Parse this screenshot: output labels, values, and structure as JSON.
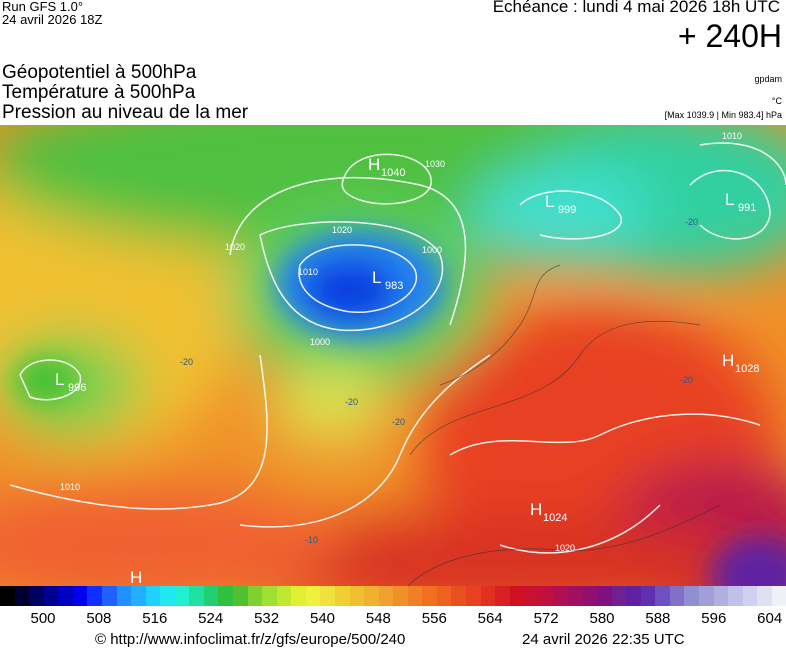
{
  "header": {
    "run": "Run GFS 1.0°",
    "run_date": "24 avril 2026 18Z",
    "valid": "Echéance : lundi 4 mai 2026 18h UTC",
    "lead": "+ 240H"
  },
  "titles": [
    "Géopotentiel à 500hPa",
    "Température à 500hPa",
    "Pression au niveau de la mer"
  ],
  "units": {
    "geopotential": "gpdam",
    "temperature": "°C",
    "pressure_range": "[Max 1039.9 | Min 983.4] hPa"
  },
  "pressure_centers": [
    {
      "symbol": "H",
      "value": "1040"
    },
    {
      "symbol": "L",
      "value": "999"
    },
    {
      "symbol": "L",
      "value": "991"
    },
    {
      "symbol": "L",
      "value": "983"
    },
    {
      "symbol": "L",
      "value": "996"
    },
    {
      "symbol": "H",
      "value": "1028"
    },
    {
      "symbol": "H",
      "value": "1024"
    },
    {
      "symbol": "H"
    }
  ],
  "isobar_labels": [
    "1010",
    "1020",
    "1030",
    "1000",
    "1000",
    "1010",
    "1020",
    "1020",
    "1010"
  ],
  "temperature_labels": [
    "-20",
    "-20",
    "-20",
    "-20",
    "-20",
    "-10"
  ],
  "scale_labels": [
    "500",
    "508",
    "516",
    "524",
    "532",
    "540",
    "548",
    "556",
    "564",
    "572",
    "580",
    "588",
    "596",
    "604"
  ],
  "footer": {
    "source": "© http://www.infoclimat.fr/z/gfs/europe/500/240",
    "generated": "24 avril 2026 22:35 UTC"
  }
}
